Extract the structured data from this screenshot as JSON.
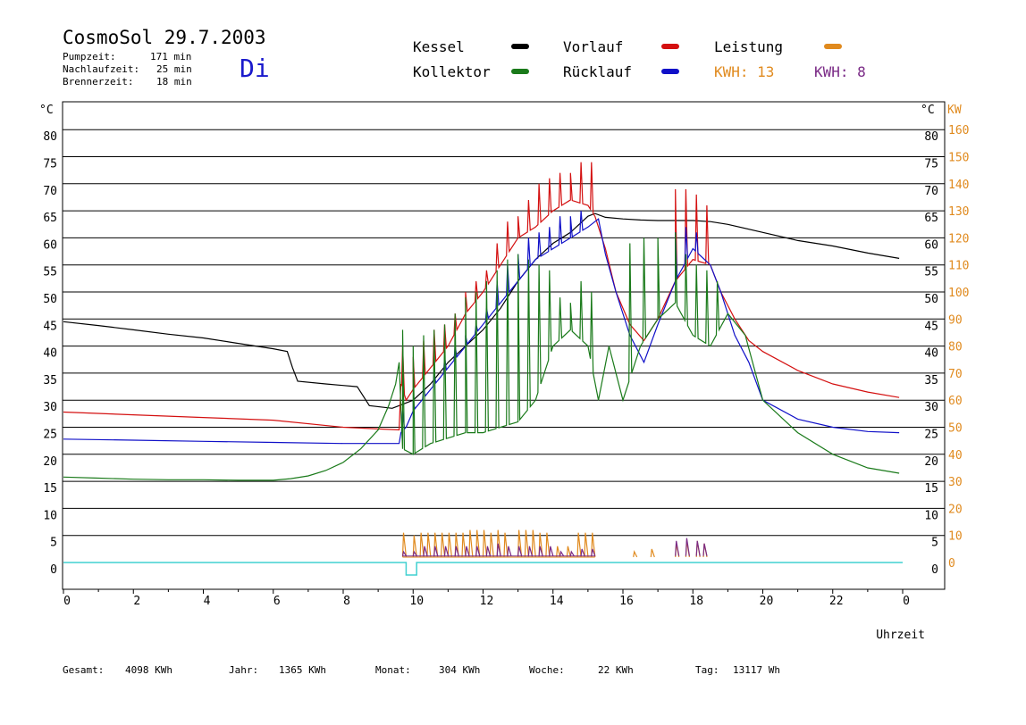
{
  "header": {
    "title": "CosmoSol 29.7.2003",
    "pumpzeit_label": "Pumpzeit:",
    "pumpzeit_value": "171 min",
    "nachlauf_label": "Nachlaufzeit:",
    "nachlauf_value": "25 min",
    "brenner_label": "Brennerzeit:",
    "brenner_value": "18 min",
    "day": "Di"
  },
  "legend": {
    "kessel": "Kessel",
    "kollektor": "Kollektor",
    "vorlauf": "Vorlauf",
    "ruecklauf": "Rücklauf",
    "leistung": "Leistung",
    "kwh_orange": "KWH: 13",
    "kwh_purple": "KWH: 8"
  },
  "colors": {
    "kessel": "#000000",
    "kollektor": "#1a7a1a",
    "vorlauf": "#d41010",
    "ruecklauf": "#1010c8",
    "leistung": "#e08a1e",
    "kwh2": "#7a2a86",
    "baseline": "#40d0d0"
  },
  "footer": {
    "gesamt_label": "Gesamt:",
    "gesamt_value": "4098 KWh",
    "jahr_label": "Jahr:",
    "jahr_value": "1365 KWh",
    "monat_label": "Monat:",
    "monat_value": "304 KWh",
    "woche_label": "Woche:",
    "woche_value": "22 KWh",
    "tag_label": "Tag:",
    "tag_value": "13117 Wh"
  },
  "chart_data": {
    "type": "line",
    "xlabel": "Uhrzeit",
    "ylabel_left": "°C",
    "ylabel_right": "°C",
    "ylabel_right2": "KW",
    "xlim": [
      0,
      24
    ],
    "ylim": [
      -5,
      85
    ],
    "y2lim": [
      -10,
      170
    ],
    "grid": true,
    "x_ticks": [
      "0",
      "2",
      "4",
      "6",
      "8",
      "10",
      "12",
      "14",
      "16",
      "18",
      "20",
      "22",
      "0"
    ],
    "y_ticks": [
      0,
      5,
      10,
      15,
      20,
      25,
      30,
      35,
      40,
      45,
      50,
      55,
      60,
      65,
      70,
      75,
      80
    ],
    "y2_ticks": [
      0,
      10,
      20,
      30,
      40,
      50,
      60,
      70,
      80,
      90,
      100,
      110,
      120,
      130,
      140,
      150,
      160
    ],
    "series": [
      {
        "name": "Kessel",
        "color_key": "kessel",
        "points": [
          [
            0,
            44.5
          ],
          [
            1,
            43.8
          ],
          [
            2,
            43.0
          ],
          [
            3,
            42.2
          ],
          [
            4,
            41.5
          ],
          [
            5,
            40.5
          ],
          [
            6,
            39.5
          ],
          [
            6.4,
            39
          ],
          [
            6.55,
            36
          ],
          [
            6.7,
            33.5
          ],
          [
            7.5,
            33
          ],
          [
            8.4,
            32.5
          ],
          [
            8.75,
            29
          ],
          [
            9.4,
            28.5
          ],
          [
            9.6,
            29
          ],
          [
            10,
            30
          ],
          [
            10.5,
            33
          ],
          [
            11,
            37
          ],
          [
            11.5,
            40
          ],
          [
            12,
            43
          ],
          [
            12.5,
            47
          ],
          [
            13,
            52
          ],
          [
            13.5,
            56
          ],
          [
            14,
            59
          ],
          [
            14.5,
            61
          ],
          [
            15,
            64
          ],
          [
            15.2,
            64.5
          ],
          [
            15.5,
            63.8
          ],
          [
            16,
            63.5
          ],
          [
            16.5,
            63.3
          ],
          [
            17,
            63.2
          ],
          [
            17.5,
            63.2
          ],
          [
            18,
            63.2
          ],
          [
            18.5,
            63
          ],
          [
            19,
            62.5
          ],
          [
            20,
            61
          ],
          [
            21,
            59.5
          ],
          [
            22,
            58.5
          ],
          [
            23,
            57.2
          ],
          [
            23.9,
            56.2
          ]
        ]
      },
      {
        "name": "Vorlauf",
        "color_key": "vorlauf",
        "points": [
          [
            0,
            27.8
          ],
          [
            2,
            27.3
          ],
          [
            4,
            26.8
          ],
          [
            6,
            26.3
          ],
          [
            8,
            25
          ],
          [
            9.6,
            24.5
          ],
          [
            9.65,
            33
          ],
          [
            9.8,
            30
          ],
          [
            10,
            32
          ],
          [
            10.5,
            36
          ],
          [
            11,
            40
          ],
          [
            11.5,
            46
          ],
          [
            12,
            50
          ],
          [
            12.5,
            55
          ],
          [
            13,
            60
          ],
          [
            13.5,
            62
          ],
          [
            14,
            65
          ],
          [
            14.5,
            67
          ],
          [
            15,
            66
          ],
          [
            15.2,
            64
          ],
          [
            15.5,
            58
          ],
          [
            15.8,
            50
          ],
          [
            16.2,
            44
          ],
          [
            16.6,
            41
          ],
          [
            17,
            45
          ],
          [
            17.5,
            52
          ],
          [
            18,
            56
          ],
          [
            18.5,
            55
          ],
          [
            18.8,
            50
          ],
          [
            19.2,
            45
          ],
          [
            19.6,
            41
          ],
          [
            20,
            39
          ],
          [
            21,
            35.5
          ],
          [
            22,
            33
          ],
          [
            23,
            31.5
          ],
          [
            23.9,
            30.5
          ]
        ],
        "spikes": [
          [
            9.7,
            40
          ],
          [
            10.0,
            38
          ],
          [
            10.3,
            41
          ],
          [
            10.6,
            43
          ],
          [
            10.9,
            44
          ],
          [
            11.2,
            46
          ],
          [
            11.5,
            50
          ],
          [
            11.8,
            52
          ],
          [
            12.1,
            54
          ],
          [
            12.4,
            59
          ],
          [
            12.7,
            63
          ],
          [
            13.0,
            64
          ],
          [
            13.3,
            67
          ],
          [
            13.6,
            70
          ],
          [
            13.9,
            71
          ],
          [
            14.2,
            72
          ],
          [
            14.5,
            72
          ],
          [
            14.8,
            74
          ],
          [
            15.1,
            74
          ],
          [
            17.5,
            69
          ],
          [
            17.8,
            69
          ],
          [
            18.1,
            68
          ],
          [
            18.4,
            66
          ]
        ]
      },
      {
        "name": "Rücklauf",
        "color_key": "ruecklauf",
        "points": [
          [
            0,
            22.8
          ],
          [
            2,
            22.6
          ],
          [
            4,
            22.4
          ],
          [
            6,
            22.2
          ],
          [
            8,
            22
          ],
          [
            9.6,
            22
          ],
          [
            9.65,
            24
          ],
          [
            9.8,
            25
          ],
          [
            10,
            28
          ],
          [
            10.5,
            32
          ],
          [
            11,
            36
          ],
          [
            11.5,
            40
          ],
          [
            12,
            44
          ],
          [
            12.5,
            48
          ],
          [
            13,
            52
          ],
          [
            13.5,
            56
          ],
          [
            14,
            58
          ],
          [
            14.5,
            60
          ],
          [
            15,
            62
          ],
          [
            15.3,
            63.5
          ],
          [
            15.5,
            57
          ],
          [
            15.8,
            50
          ],
          [
            16.2,
            42
          ],
          [
            16.6,
            37
          ],
          [
            17,
            44
          ],
          [
            17.5,
            52
          ],
          [
            18,
            58
          ],
          [
            18.5,
            55
          ],
          [
            18.8,
            50
          ],
          [
            19.2,
            42
          ],
          [
            19.6,
            37
          ],
          [
            20,
            30
          ],
          [
            21,
            26.5
          ],
          [
            22,
            25
          ],
          [
            23,
            24.2
          ],
          [
            23.9,
            24
          ]
        ],
        "spikes": [
          [
            9.7,
            28
          ],
          [
            10.0,
            30
          ],
          [
            10.3,
            32
          ],
          [
            10.6,
            35
          ],
          [
            10.9,
            38
          ],
          [
            11.2,
            40
          ],
          [
            11.5,
            42
          ],
          [
            11.8,
            44
          ],
          [
            12.1,
            47
          ],
          [
            12.4,
            52
          ],
          [
            12.7,
            55
          ],
          [
            13.0,
            57
          ],
          [
            13.3,
            60
          ],
          [
            13.6,
            61
          ],
          [
            13.9,
            62
          ],
          [
            14.2,
            64
          ],
          [
            14.5,
            64
          ],
          [
            14.8,
            65
          ],
          [
            17.5,
            61
          ],
          [
            17.8,
            62
          ],
          [
            18.1,
            61
          ]
        ]
      },
      {
        "name": "Kollektor",
        "color_key": "kollektor",
        "points": [
          [
            0,
            15.8
          ],
          [
            1,
            15.6
          ],
          [
            2,
            15.4
          ],
          [
            3,
            15.3
          ],
          [
            4,
            15.3
          ],
          [
            5,
            15.2
          ],
          [
            6,
            15.2
          ],
          [
            6.5,
            15.5
          ],
          [
            7,
            16
          ],
          [
            7.5,
            17
          ],
          [
            8,
            18.5
          ],
          [
            8.5,
            21
          ],
          [
            9,
            24.5
          ],
          [
            9.3,
            29
          ],
          [
            9.5,
            33
          ],
          [
            9.6,
            37
          ],
          [
            9.7,
            21
          ],
          [
            10,
            20
          ],
          [
            10.5,
            22
          ],
          [
            11,
            23
          ],
          [
            11.5,
            24
          ],
          [
            12,
            24
          ],
          [
            12.5,
            25
          ],
          [
            13,
            26
          ],
          [
            13.5,
            30
          ],
          [
            14,
            40
          ],
          [
            14.5,
            43
          ],
          [
            15,
            40
          ],
          [
            15.3,
            30
          ],
          [
            15.6,
            40
          ],
          [
            16,
            30
          ],
          [
            16.5,
            40
          ],
          [
            17,
            45
          ],
          [
            17.5,
            48
          ],
          [
            18,
            42
          ],
          [
            18.5,
            40
          ],
          [
            19,
            46
          ],
          [
            19.5,
            42
          ],
          [
            20,
            30
          ],
          [
            21,
            24
          ],
          [
            22,
            20
          ],
          [
            23,
            17.5
          ],
          [
            23.9,
            16.5
          ]
        ],
        "spikes": [
          [
            9.7,
            43
          ],
          [
            10.0,
            40
          ],
          [
            10.3,
            42
          ],
          [
            10.6,
            43
          ],
          [
            10.9,
            44
          ],
          [
            11.2,
            46
          ],
          [
            11.5,
            49
          ],
          [
            11.8,
            50
          ],
          [
            12.1,
            52
          ],
          [
            12.4,
            54
          ],
          [
            12.7,
            56
          ],
          [
            13.0,
            57
          ],
          [
            13.3,
            56
          ],
          [
            13.6,
            55
          ],
          [
            13.9,
            54
          ],
          [
            14.2,
            49
          ],
          [
            14.5,
            48
          ],
          [
            14.8,
            52
          ],
          [
            15.1,
            50
          ],
          [
            16.2,
            59
          ],
          [
            16.6,
            60
          ],
          [
            17.0,
            60
          ],
          [
            17.5,
            61
          ],
          [
            17.8,
            57
          ],
          [
            18.1,
            55
          ],
          [
            18.4,
            54
          ],
          [
            18.7,
            52
          ]
        ]
      },
      {
        "name": "Leistung",
        "color_key": "leistung",
        "base": 1.0,
        "spikes": [
          [
            9.7,
            5.5
          ],
          [
            10.0,
            5
          ],
          [
            10.2,
            5.5
          ],
          [
            10.4,
            5.5
          ],
          [
            10.6,
            5.5
          ],
          [
            10.8,
            5.5
          ],
          [
            11.0,
            5.5
          ],
          [
            11.2,
            5.5
          ],
          [
            11.4,
            5.5
          ],
          [
            11.6,
            6
          ],
          [
            11.8,
            6
          ],
          [
            12.0,
            6
          ],
          [
            12.2,
            5.5
          ],
          [
            12.4,
            6
          ],
          [
            12.6,
            5.5
          ],
          [
            13.0,
            6
          ],
          [
            13.2,
            6
          ],
          [
            13.4,
            6
          ],
          [
            13.6,
            5.5
          ],
          [
            13.8,
            5.5
          ],
          [
            14.1,
            3
          ],
          [
            14.4,
            3
          ],
          [
            14.7,
            5.5
          ],
          [
            14.9,
            5.5
          ],
          [
            15.1,
            5.5
          ],
          [
            16.3,
            2
          ],
          [
            16.8,
            2.5
          ],
          [
            17.5,
            3.5
          ],
          [
            17.8,
            4
          ],
          [
            18.1,
            4
          ],
          [
            18.3,
            3.5
          ]
        ]
      },
      {
        "name": "KWH 8",
        "color_key": "kwh2",
        "base": 1.2,
        "spikes": [
          [
            9.7,
            2
          ],
          [
            10.0,
            2
          ],
          [
            10.3,
            3
          ],
          [
            10.6,
            3
          ],
          [
            10.9,
            3
          ],
          [
            11.2,
            3
          ],
          [
            11.5,
            3
          ],
          [
            11.8,
            3
          ],
          [
            12.1,
            3
          ],
          [
            12.4,
            3.5
          ],
          [
            12.7,
            3
          ],
          [
            13.0,
            3
          ],
          [
            13.3,
            3
          ],
          [
            13.6,
            3
          ],
          [
            13.9,
            3
          ],
          [
            14.2,
            2
          ],
          [
            14.5,
            2
          ],
          [
            14.8,
            2.5
          ],
          [
            15.1,
            2.5
          ],
          [
            17.5,
            4
          ],
          [
            17.8,
            4.5
          ],
          [
            18.1,
            4
          ],
          [
            18.3,
            3.5
          ]
        ]
      }
    ],
    "baseline_pulse": {
      "x_start": 9.8,
      "x_end": 10.1,
      "depth": -2.3
    }
  }
}
